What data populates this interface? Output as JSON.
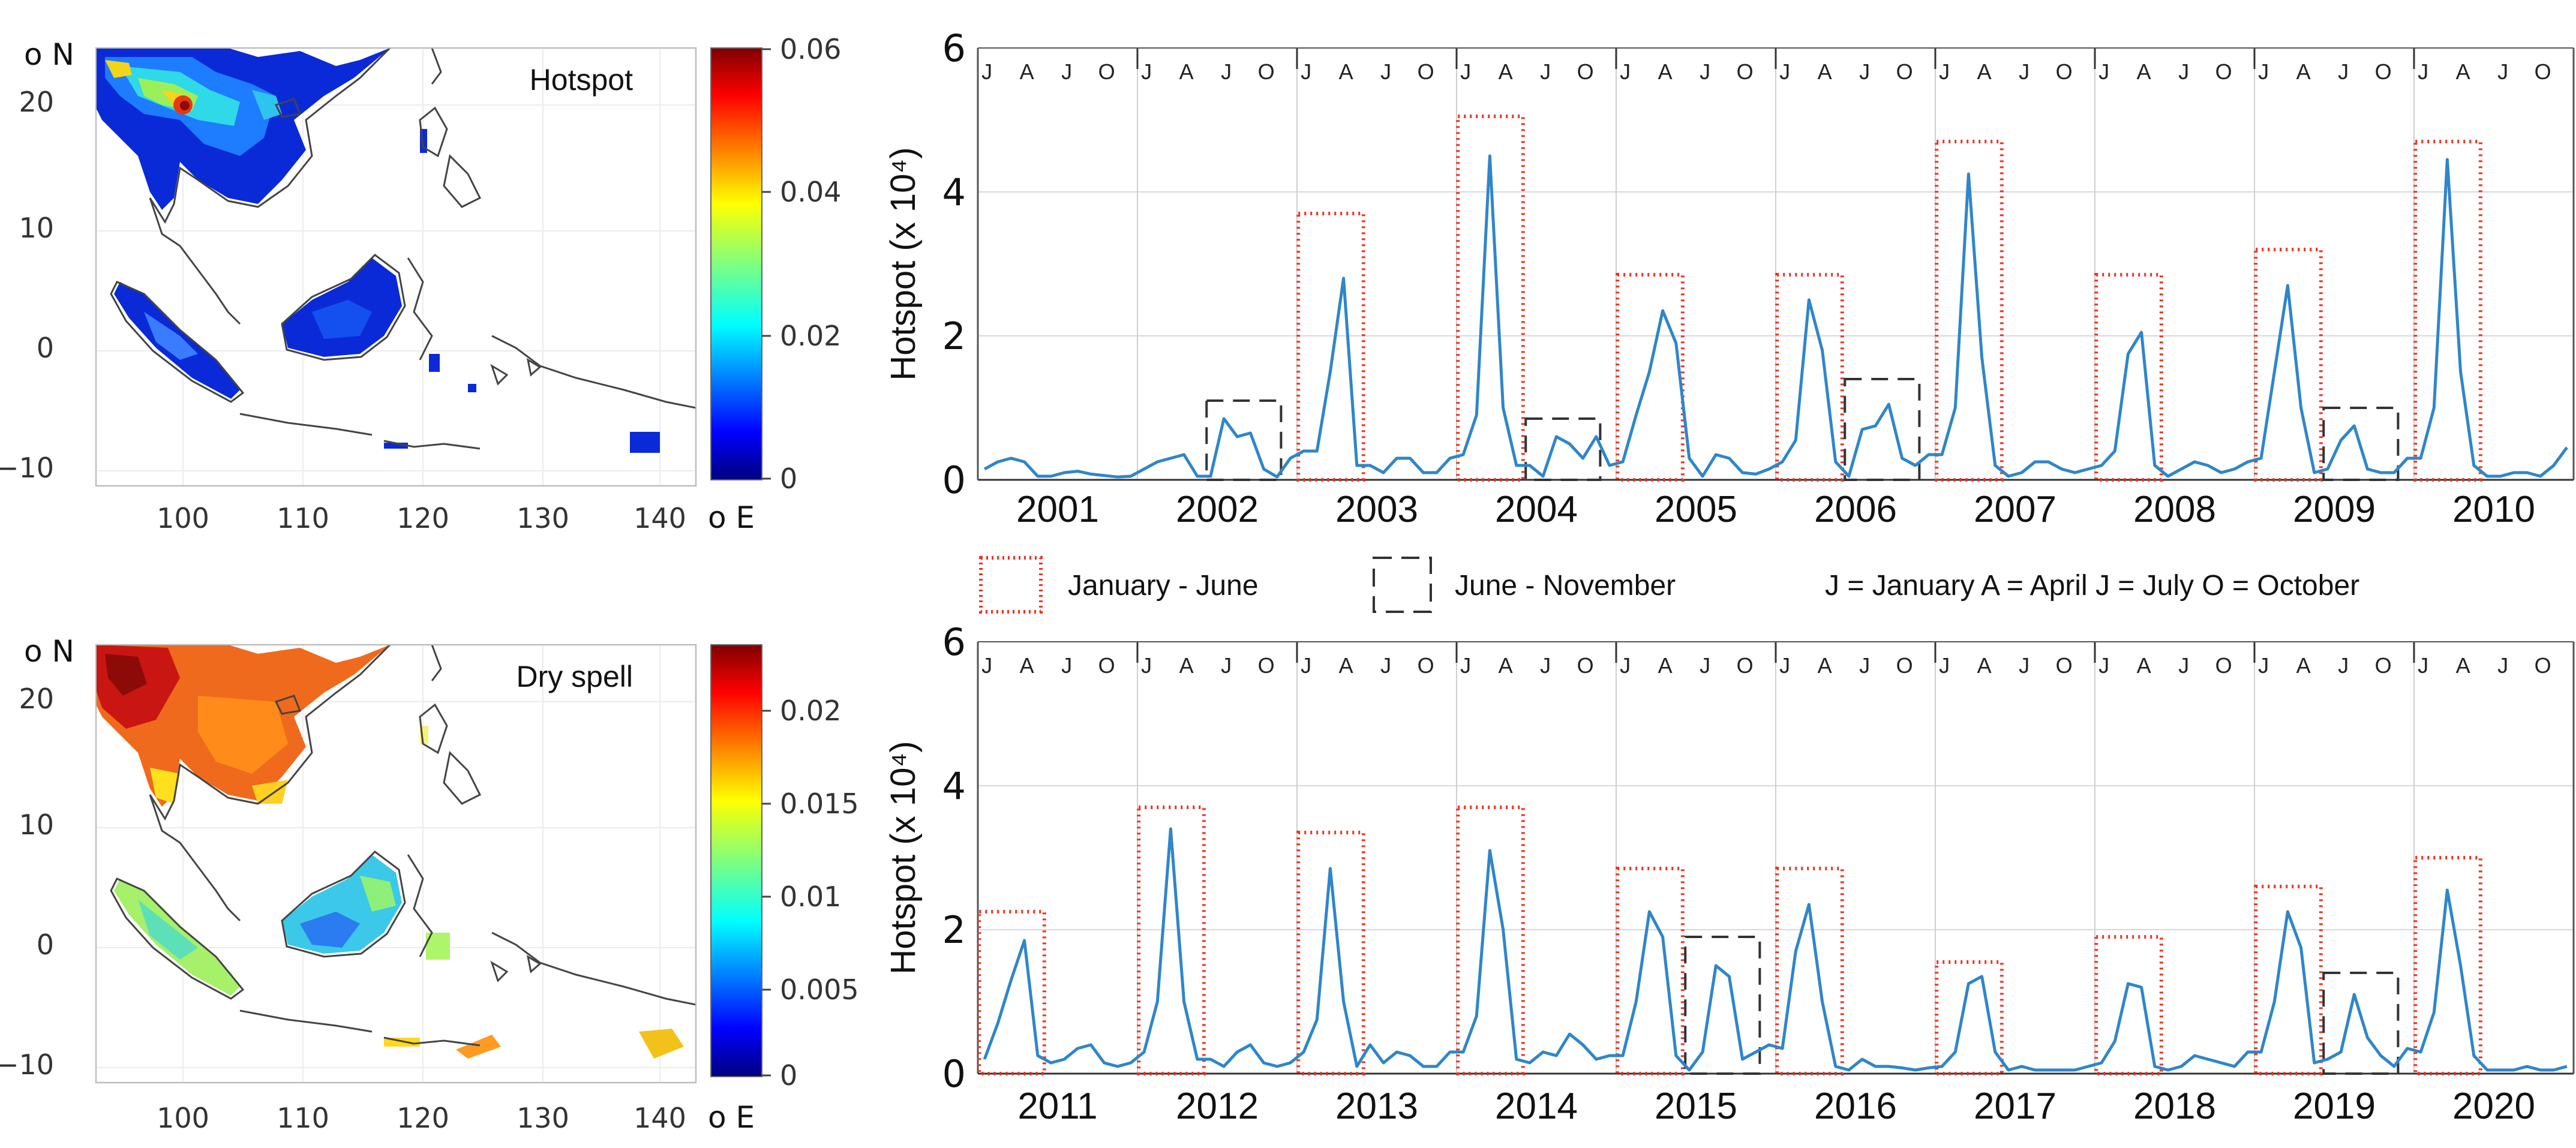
{
  "colors": {
    "series": "#2f86c9",
    "jan_jun_box": "#f0311f",
    "jun_nov_box": "#333333",
    "grid": "#d8d8d8",
    "land_outline": "#444444"
  },
  "maps": [
    {
      "id": "hotspot",
      "title": "Hotspot",
      "lat_unit": "o N",
      "lon_unit": "o E",
      "lat_ticks": [
        "20",
        "10",
        "0",
        "−10"
      ],
      "lon_ticks": [
        "100",
        "110",
        "120",
        "130",
        "140"
      ],
      "colorbar_ticks": [
        "0.06",
        "0.04",
        "0.02",
        "0"
      ],
      "colorbar_range": [
        0,
        0.06
      ],
      "colormap": "jet"
    },
    {
      "id": "dryspell",
      "title": "Dry spell",
      "lat_unit": "o N",
      "lon_unit": "o E",
      "lat_ticks": [
        "20",
        "10",
        "0",
        "−10"
      ],
      "lon_ticks": [
        "100",
        "110",
        "120",
        "130",
        "140"
      ],
      "colorbar_ticks": [
        "0.02",
        "0.015",
        "0.01",
        "0.005",
        "0"
      ],
      "colorbar_range": [
        0,
        0.023
      ],
      "colormap": "jet"
    }
  ],
  "legend": {
    "jan_jun": "January - June",
    "jun_nov": "June - November",
    "month_key": "J = January  A = April  J = July  O = October"
  },
  "chart_data": [
    {
      "type": "line",
      "ylabel": "Hotspot (x 10⁴)",
      "ylim": [
        0,
        6
      ],
      "yticks": [
        "0",
        "2",
        "4",
        "6"
      ],
      "years": [
        "2001",
        "2002",
        "2003",
        "2004",
        "2005",
        "2006",
        "2007",
        "2008",
        "2009",
        "2010"
      ],
      "month_marks": [
        "J",
        "A",
        "J",
        "O"
      ],
      "values": [
        0.15,
        0.25,
        0.3,
        0.25,
        0.05,
        0.05,
        0.1,
        0.12,
        0.08,
        0.06,
        0.04,
        0.05,
        0.15,
        0.25,
        0.3,
        0.35,
        0.05,
        0.05,
        0.85,
        0.6,
        0.65,
        0.15,
        0.04,
        0.3,
        0.4,
        0.4,
        1.5,
        2.8,
        0.2,
        0.2,
        0.1,
        0.3,
        0.3,
        0.1,
        0.1,
        0.3,
        0.35,
        0.9,
        4.5,
        1.0,
        0.2,
        0.2,
        0.05,
        0.6,
        0.5,
        0.3,
        0.6,
        0.2,
        0.25,
        0.9,
        1.5,
        2.35,
        1.9,
        0.3,
        0.05,
        0.35,
        0.3,
        0.1,
        0.08,
        0.15,
        0.25,
        0.55,
        2.5,
        1.8,
        0.25,
        0.05,
        0.7,
        0.75,
        1.05,
        0.3,
        0.2,
        0.35,
        0.35,
        1.0,
        4.25,
        1.7,
        0.2,
        0.05,
        0.1,
        0.25,
        0.25,
        0.15,
        0.1,
        0.15,
        0.2,
        0.4,
        1.75,
        2.05,
        0.2,
        0.05,
        0.15,
        0.25,
        0.2,
        0.1,
        0.15,
        0.25,
        0.3,
        1.5,
        2.7,
        1.0,
        0.1,
        0.15,
        0.55,
        0.75,
        0.15,
        0.1,
        0.1,
        0.3,
        0.3,
        1.0,
        4.45,
        1.5,
        0.2,
        0.05,
        0.05,
        0.1,
        0.1,
        0.05,
        0.2,
        0.45
      ],
      "jan_jun_boxes": [
        {
          "year_index": 2,
          "height": 3.7
        },
        {
          "year_index": 3,
          "height": 5.05
        },
        {
          "year_index": 4,
          "height": 2.85
        },
        {
          "year_index": 5,
          "height": 2.85
        },
        {
          "year_index": 6,
          "height": 4.7
        },
        {
          "year_index": 7,
          "height": 2.85
        },
        {
          "year_index": 8,
          "height": 3.2
        },
        {
          "year_index": 9,
          "height": 4.7
        }
      ],
      "jun_nov_boxes": [
        {
          "year_index": 1,
          "height": 1.1
        },
        {
          "year_index": 3,
          "height": 0.85
        },
        {
          "year_index": 5,
          "height": 1.4
        },
        {
          "year_index": 8,
          "height": 1.0
        }
      ]
    },
    {
      "type": "line",
      "ylabel": "Hotspot (x 10⁴)",
      "ylim": [
        0,
        6
      ],
      "yticks": [
        "0",
        "2",
        "4",
        "6"
      ],
      "years": [
        "2011",
        "2012",
        "2013",
        "2014",
        "2015",
        "2016",
        "2017",
        "2018",
        "2019",
        "2020"
      ],
      "month_marks": [
        "J",
        "A",
        "J",
        "O"
      ],
      "values": [
        0.2,
        0.7,
        1.3,
        1.85,
        0.25,
        0.15,
        0.2,
        0.35,
        0.4,
        0.15,
        0.1,
        0.15,
        0.3,
        1.0,
        3.4,
        1.0,
        0.2,
        0.2,
        0.1,
        0.3,
        0.4,
        0.15,
        0.1,
        0.15,
        0.3,
        0.75,
        2.85,
        1.0,
        0.1,
        0.4,
        0.15,
        0.3,
        0.25,
        0.1,
        0.1,
        0.3,
        0.3,
        0.8,
        3.1,
        2.0,
        0.2,
        0.15,
        0.3,
        0.25,
        0.55,
        0.4,
        0.2,
        0.25,
        0.25,
        1.0,
        2.25,
        1.9,
        0.25,
        0.05,
        0.3,
        1.5,
        1.35,
        0.2,
        0.3,
        0.4,
        0.35,
        1.7,
        2.35,
        1.0,
        0.1,
        0.05,
        0.2,
        0.1,
        0.1,
        0.08,
        0.05,
        0.08,
        0.1,
        0.3,
        1.25,
        1.35,
        0.3,
        0.05,
        0.1,
        0.05,
        0.05,
        0.05,
        0.05,
        0.1,
        0.15,
        0.45,
        1.25,
        1.2,
        0.1,
        0.05,
        0.1,
        0.25,
        0.2,
        0.15,
        0.1,
        0.3,
        0.3,
        1.0,
        2.25,
        1.75,
        0.15,
        0.2,
        0.3,
        1.1,
        0.5,
        0.25,
        0.1,
        0.35,
        0.3,
        0.85,
        2.55,
        1.5,
        0.25,
        0.05,
        0.05,
        0.05,
        0.1,
        0.05,
        0.05,
        0.1
      ],
      "jan_jun_boxes": [
        {
          "year_index": 0,
          "height": 2.25
        },
        {
          "year_index": 1,
          "height": 3.7
        },
        {
          "year_index": 2,
          "height": 3.35
        },
        {
          "year_index": 3,
          "height": 3.7
        },
        {
          "year_index": 4,
          "height": 2.85
        },
        {
          "year_index": 5,
          "height": 2.85
        },
        {
          "year_index": 6,
          "height": 1.55
        },
        {
          "year_index": 7,
          "height": 1.9
        },
        {
          "year_index": 8,
          "height": 2.6
        },
        {
          "year_index": 9,
          "height": 3.0
        }
      ],
      "jun_nov_boxes": [
        {
          "year_index": 4,
          "height": 1.9
        },
        {
          "year_index": 8,
          "height": 1.4
        }
      ]
    }
  ]
}
